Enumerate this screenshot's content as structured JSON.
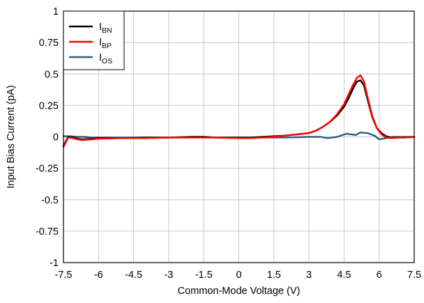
{
  "chart_data": {
    "type": "line",
    "title": "",
    "xlabel": "Common-Mode Voltage (V)",
    "ylabel": "Input Bias Current (pA)",
    "xlim": [
      -7.5,
      7.5
    ],
    "ylim": [
      -1,
      1
    ],
    "x_ticks": [
      -7.5,
      -6,
      -4.5,
      -3,
      -1.5,
      0,
      1.5,
      3,
      4.5,
      6,
      7.5
    ],
    "x_tick_labels": [
      "-7.5",
      "-6",
      "-4.5",
      "-3",
      "-1.5",
      "0",
      "1.5",
      "3",
      "4.5",
      "6",
      "7.5"
    ],
    "y_ticks": [
      1,
      0.75,
      0.5,
      0.25,
      0,
      -0.25,
      -0.5,
      -0.75,
      -1
    ],
    "y_tick_labels": [
      "1",
      "0.75",
      "0.5",
      "0.25",
      "0",
      "-0.25",
      "-0.5",
      "-0.75",
      "-1"
    ],
    "grid": true,
    "legend_position": "top-left",
    "series": [
      {
        "name": "BN",
        "label_main": "I",
        "label_sub": "BN",
        "color": "#000000",
        "x": [
          -7.5,
          -7.3,
          -7.1,
          -6.9,
          -6.7,
          -6.3,
          -6,
          -5,
          -4,
          -3,
          -2,
          -1.5,
          -1,
          0,
          0.5,
          1,
          1.5,
          2,
          2.5,
          3,
          3.3,
          3.6,
          3.9,
          4.2,
          4.5,
          4.7,
          4.9,
          5.05,
          5.2,
          5.35,
          5.5,
          5.7,
          5.9,
          6.1,
          6.3,
          6.5,
          6.8,
          7.1,
          7.5
        ],
        "y": [
          -0.07,
          0,
          -0.005,
          -0.015,
          -0.02,
          -0.015,
          -0.01,
          -0.01,
          -0.005,
          -0.005,
          0,
          0,
          -0.005,
          -0.005,
          -0.005,
          0,
          0.005,
          0.01,
          0.02,
          0.03,
          0.05,
          0.08,
          0.12,
          0.17,
          0.24,
          0.31,
          0.39,
          0.44,
          0.45,
          0.41,
          0.3,
          0.16,
          0.07,
          0.03,
          0.005,
          -0.005,
          -0.005,
          -0.005,
          0
        ]
      },
      {
        "name": "BP",
        "label_main": "I",
        "label_sub": "BP",
        "color": "#ff0000",
        "x": [
          -7.5,
          -7.3,
          -7.1,
          -6.9,
          -6.7,
          -6.3,
          -6,
          -5,
          -4,
          -3,
          -2,
          -1.5,
          -1,
          0,
          0.5,
          1,
          1.5,
          2,
          2.5,
          3,
          3.3,
          3.6,
          3.9,
          4.2,
          4.5,
          4.7,
          4.9,
          5.05,
          5.2,
          5.35,
          5.5,
          5.7,
          5.9,
          6.1,
          6.3,
          6.5,
          6.8,
          7.1,
          7.5
        ],
        "y": [
          -0.08,
          -0.005,
          -0.01,
          -0.02,
          -0.025,
          -0.02,
          -0.015,
          -0.01,
          -0.01,
          -0.005,
          -0.005,
          -0.005,
          -0.005,
          -0.01,
          -0.01,
          -0.005,
          0,
          0.01,
          0.02,
          0.03,
          0.05,
          0.08,
          0.12,
          0.18,
          0.26,
          0.34,
          0.42,
          0.47,
          0.49,
          0.44,
          0.32,
          0.17,
          0.07,
          0.02,
          -0.005,
          -0.01,
          -0.005,
          -0.005,
          0
        ]
      },
      {
        "name": "OS",
        "label_main": "I",
        "label_sub": "OS",
        "color": "#2e5e78",
        "x": [
          -7.5,
          -7.2,
          -6.9,
          -6.6,
          -6.3,
          -6,
          -5,
          -4,
          -3,
          -2,
          -1,
          0,
          1,
          2,
          3,
          3.5,
          3.8,
          4.2,
          4.6,
          5,
          5.2,
          5.5,
          5.8,
          6,
          6.3,
          6.6,
          7,
          7.5
        ],
        "y": [
          0.005,
          0.005,
          0,
          0,
          -0.005,
          -0.005,
          -0.005,
          -0.005,
          -0.005,
          -0.005,
          -0.005,
          -0.005,
          -0.005,
          -0.005,
          0,
          0,
          -0.01,
          0,
          0.025,
          0.015,
          0.035,
          0.03,
          0.01,
          -0.02,
          -0.01,
          0,
          0,
          0
        ]
      }
    ]
  }
}
